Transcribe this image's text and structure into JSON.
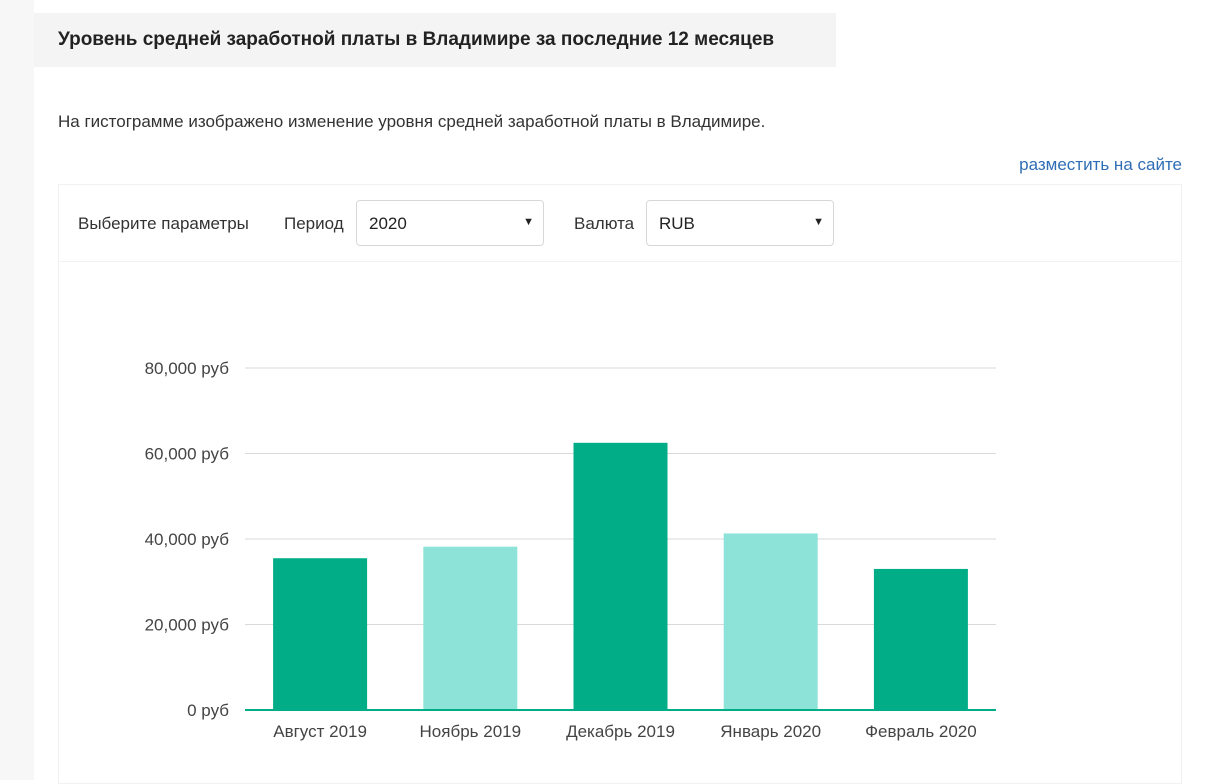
{
  "page": {
    "title": "Уровень средней заработной платы в Владимире за последние 12 месяцев",
    "description": "На гистограмме изображено изменение уровня средней заработной платы в Владимире.",
    "embed_link": "разместить на сайте"
  },
  "params": {
    "label": "Выберите параметры",
    "period_label": "Период",
    "period_value": "2020",
    "currency_label": "Валюта",
    "currency_value": "RUB"
  },
  "colors": {
    "bar_dark": "#00ad87",
    "bar_light": "#8ee3d9",
    "axis": "#00ad87",
    "grid": "#d9d9d9",
    "link": "#2f6db5"
  },
  "icons": {
    "dropdown": "caret-down-icon"
  },
  "chart_data": {
    "type": "bar",
    "categories": [
      "Август 2019",
      "Ноябрь 2019",
      "Декабрь 2019",
      "Январь 2020",
      "Февраль 2020"
    ],
    "values": [
      35500,
      38200,
      62500,
      41300,
      33000
    ],
    "bar_styles": [
      "dark",
      "light",
      "dark",
      "light",
      "dark"
    ],
    "ylim": [
      0,
      80000
    ],
    "yticks": [
      0,
      20000,
      40000,
      60000,
      80000
    ],
    "ytick_labels": [
      "0 руб",
      "20,000 руб",
      "40,000 руб",
      "60,000 руб",
      "80,000 руб"
    ],
    "grid": true,
    "title": "",
    "xlabel": "",
    "ylabel": ""
  }
}
